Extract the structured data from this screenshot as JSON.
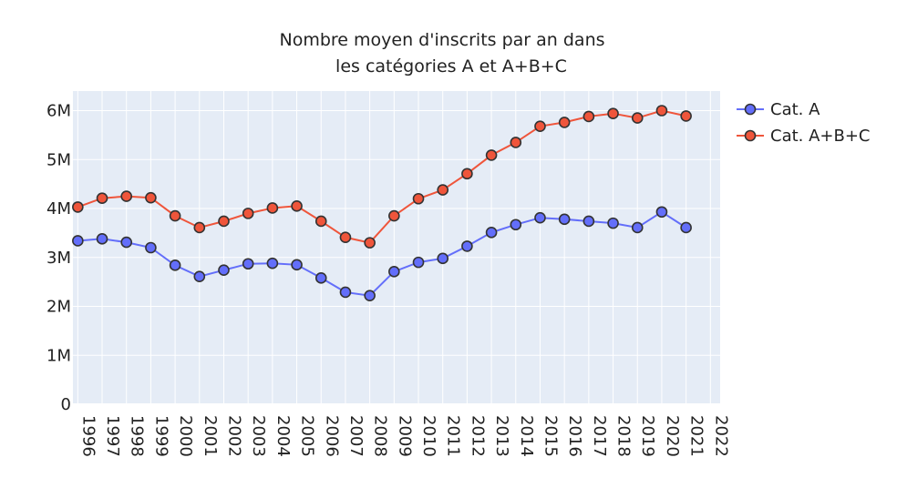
{
  "chart_data": {
    "type": "line",
    "title_lines": [
      "Nombre moyen d'inscrits par an dans",
      "les catégories A et A+B+C"
    ],
    "xlabel": "",
    "ylabel": "",
    "x": [
      1996,
      1997,
      1998,
      1999,
      2000,
      2001,
      2002,
      2003,
      2004,
      2005,
      2006,
      2007,
      2008,
      2009,
      2010,
      2011,
      2012,
      2013,
      2014,
      2015,
      2016,
      2017,
      2018,
      2019,
      2020,
      2021
    ],
    "x_ticks": [
      1996,
      1997,
      1998,
      1999,
      2000,
      2001,
      2002,
      2003,
      2004,
      2005,
      2006,
      2007,
      2008,
      2009,
      2010,
      2011,
      2012,
      2013,
      2014,
      2015,
      2016,
      2017,
      2018,
      2019,
      2020,
      2021,
      2022
    ],
    "xlim": [
      1995.8,
      2022.4
    ],
    "y_ticks": [
      {
        "value": 0,
        "label": "0"
      },
      {
        "value": 1000000,
        "label": "1M"
      },
      {
        "value": 2000000,
        "label": "2M"
      },
      {
        "value": 3000000,
        "label": "3M"
      },
      {
        "value": 4000000,
        "label": "4M"
      },
      {
        "value": 5000000,
        "label": "5M"
      },
      {
        "value": 6000000,
        "label": "6M"
      }
    ],
    "ylim": [
      0,
      6400000
    ],
    "grid": true,
    "legend_position": "top-right",
    "series": [
      {
        "name": "Cat. A",
        "color": "#636efa",
        "values": [
          3340000,
          3380000,
          3310000,
          3200000,
          2840000,
          2610000,
          2740000,
          2870000,
          2880000,
          2850000,
          2580000,
          2290000,
          2220000,
          2710000,
          2900000,
          2980000,
          3230000,
          3510000,
          3670000,
          3810000,
          3780000,
          3740000,
          3700000,
          3610000,
          3930000,
          3610000
        ]
      },
      {
        "name": "Cat. A+B+C",
        "color": "#ef553b",
        "values": [
          4030000,
          4210000,
          4250000,
          4220000,
          3850000,
          3610000,
          3740000,
          3900000,
          4010000,
          4050000,
          3740000,
          3410000,
          3300000,
          3850000,
          4200000,
          4380000,
          4710000,
          5090000,
          5350000,
          5680000,
          5760000,
          5880000,
          5940000,
          5850000,
          6000000,
          5890000
        ]
      }
    ]
  }
}
